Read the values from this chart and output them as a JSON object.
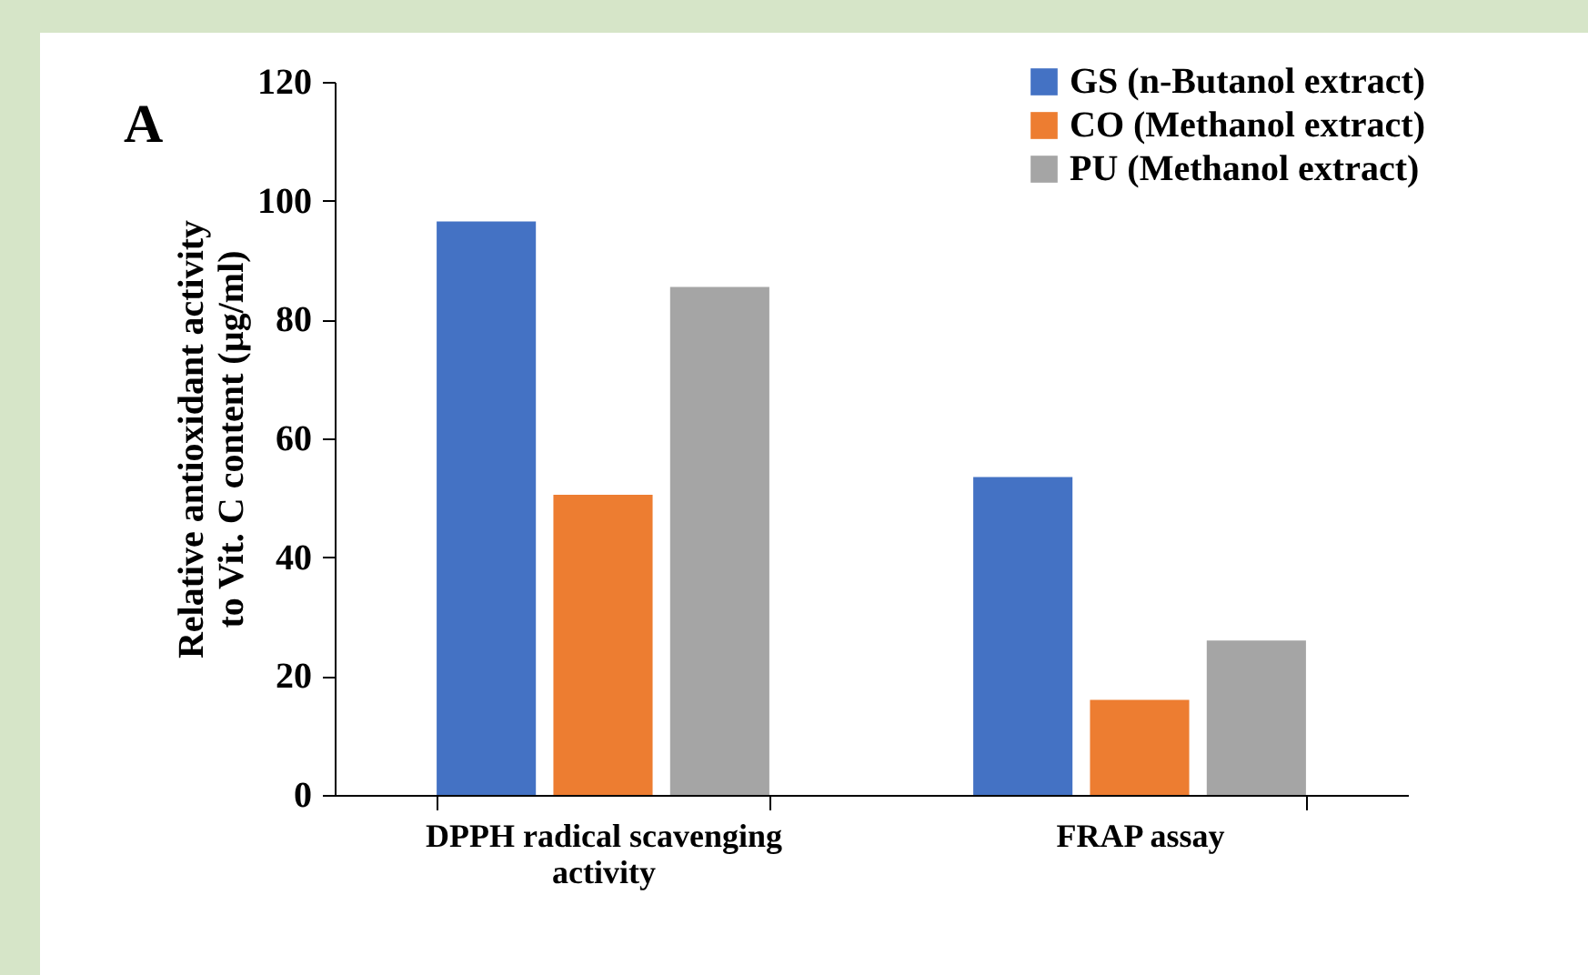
{
  "chart_data": {
    "type": "bar",
    "ylabel": "Relative antioxidant activity to Vit. C content (µg/ml)",
    "annotations": [
      "A"
    ],
    "categories": [
      "DPPH radical scavenging activity",
      "FRAP assay"
    ],
    "series": [
      {
        "name": "GS (n-Butanol extract)",
        "color": "#4472c4",
        "values": [
          96.5,
          53.5
        ]
      },
      {
        "name": "CO (Methanol extract)",
        "color": "#ed7d31",
        "values": [
          50.5,
          16
        ]
      },
      {
        "name": "PU (Methanol extract)",
        "color": "#a5a5a5",
        "values": [
          85.5,
          26
        ]
      }
    ],
    "ylim": [
      0,
      120
    ],
    "yticks": [
      0,
      20,
      40,
      60,
      80,
      100,
      120
    ],
    "grid": false,
    "legend": "top right"
  }
}
